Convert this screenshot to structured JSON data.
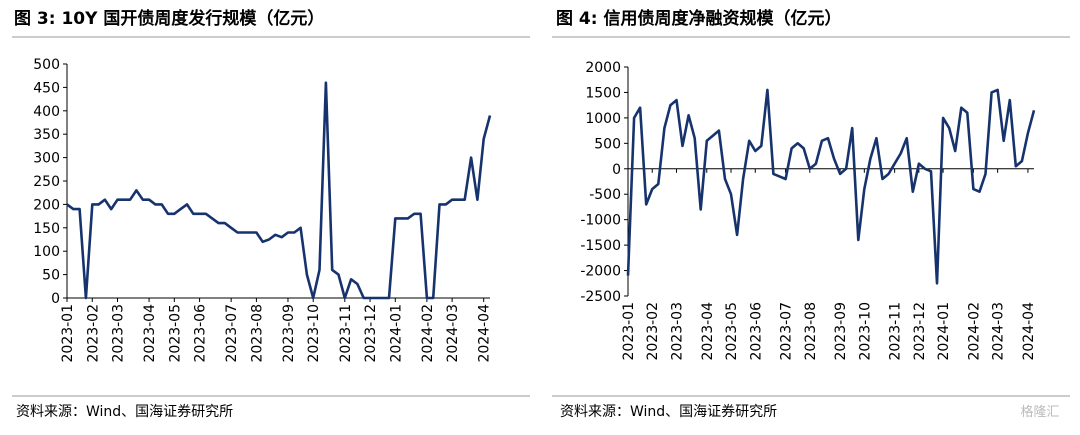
{
  "chart_data": [
    {
      "type": "line",
      "title": "图 3:  10Y 国开债周度发行规模（亿元）",
      "categories": [
        "2023-01",
        null,
        null,
        null,
        "2023-02",
        null,
        null,
        null,
        "2023-03",
        null,
        null,
        null,
        null,
        "2023-04",
        null,
        null,
        null,
        "2023-05",
        null,
        null,
        null,
        "2023-06",
        null,
        null,
        null,
        null,
        "2023-07",
        null,
        null,
        null,
        "2023-08",
        null,
        null,
        null,
        null,
        "2023-09",
        null,
        null,
        null,
        "2023-10",
        null,
        null,
        null,
        null,
        "2023-11",
        null,
        null,
        null,
        "2023-12",
        null,
        null,
        null,
        "2024-01",
        null,
        null,
        null,
        null,
        "2024-02",
        null,
        null,
        null,
        "2024-03",
        null,
        null,
        null,
        null,
        "2024-04",
        null
      ],
      "values": [
        200,
        190,
        190,
        0,
        200,
        200,
        210,
        190,
        210,
        210,
        210,
        230,
        210,
        210,
        200,
        200,
        180,
        180,
        190,
        200,
        180,
        180,
        180,
        170,
        160,
        160,
        150,
        140,
        140,
        140,
        140,
        120,
        125,
        135,
        130,
        140,
        140,
        150,
        50,
        0,
        60,
        460,
        60,
        50,
        0,
        40,
        30,
        0,
        0,
        0,
        0,
        0,
        170,
        170,
        170,
        180,
        180,
        0,
        0,
        200,
        200,
        210,
        210,
        210,
        300,
        210,
        340,
        390
      ],
      "color": "#17336e",
      "ylim": [
        0,
        500
      ],
      "yticks": [
        0,
        50,
        100,
        150,
        200,
        250,
        300,
        350,
        400,
        450,
        500
      ],
      "source": "资料来源：Wind、国海证券研究所"
    },
    {
      "type": "line",
      "title": "图 4:  信用债周度净融资规模（亿元）",
      "categories": [
        "2023-01",
        null,
        null,
        null,
        "2023-02",
        null,
        null,
        null,
        "2023-03",
        null,
        null,
        null,
        null,
        "2023-04",
        null,
        null,
        null,
        "2023-05",
        null,
        null,
        null,
        "2023-06",
        null,
        null,
        null,
        null,
        "2023-07",
        null,
        null,
        null,
        "2023-08",
        null,
        null,
        null,
        null,
        "2023-09",
        null,
        null,
        null,
        "2023-10",
        null,
        null,
        null,
        null,
        "2023-11",
        null,
        null,
        null,
        "2023-12",
        null,
        null,
        null,
        "2024-01",
        null,
        null,
        null,
        null,
        "2024-02",
        null,
        null,
        null,
        "2024-03",
        null,
        null,
        null,
        null,
        "2024-04",
        null
      ],
      "values": [
        -2100,
        1000,
        1200,
        -700,
        -400,
        -300,
        800,
        1250,
        1350,
        450,
        1050,
        600,
        -800,
        550,
        650,
        750,
        -200,
        -500,
        -1300,
        -200,
        550,
        350,
        450,
        1550,
        -100,
        -150,
        -200,
        400,
        500,
        400,
        0,
        100,
        550,
        600,
        200,
        -100,
        0,
        800,
        -1400,
        -400,
        200,
        600,
        -200,
        -100,
        100,
        300,
        600,
        -450,
        100,
        0,
        -50,
        -2250,
        1000,
        800,
        350,
        1200,
        1100,
        -400,
        -450,
        -100,
        1500,
        1550,
        550,
        1350,
        50,
        150,
        700,
        1150
      ],
      "color": "#17336e",
      "ylim": [
        -2500,
        2000
      ],
      "yticks": [
        -2500,
        -2000,
        -1500,
        -1000,
        -500,
        0,
        500,
        1000,
        1500,
        2000
      ],
      "source": "资料来源：Wind、国海证券研究所"
    }
  ],
  "watermark": "格隆汇"
}
